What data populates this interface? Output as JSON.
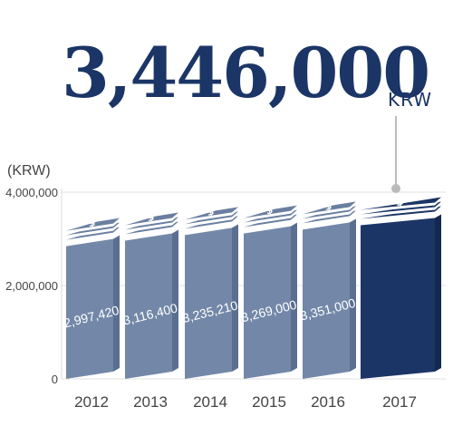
{
  "headline": {
    "value": "3,446,000",
    "unit": "KRW"
  },
  "chart_data": {
    "type": "bar",
    "ylabel": "(KRW)",
    "ylim": [
      0,
      4000000
    ],
    "y_ticks": [
      "0",
      "2,000,000",
      "4,000,000"
    ],
    "categories": [
      "2012",
      "2013",
      "2014",
      "2015",
      "2016",
      "2017"
    ],
    "values": [
      2997420,
      3116400,
      3235210,
      3269000,
      3351000,
      3446000
    ],
    "value_labels": [
      "2,997,420",
      "3,116,400",
      "3,235,210",
      "3,269,000",
      "3,351,000",
      ""
    ],
    "highlight_index": 5,
    "grid": true,
    "legend": "none"
  },
  "icons": {
    "bar_top": "money-stack-icon"
  },
  "colors": {
    "bar": "#7388a8",
    "bar_side": "#5a6f90",
    "bar_top": "#6a7fa0",
    "highlight": "#1b3566",
    "highlight_side": "#142850",
    "text": "#444444",
    "headline": "#1b3566",
    "connector": "#bbbbbb"
  }
}
